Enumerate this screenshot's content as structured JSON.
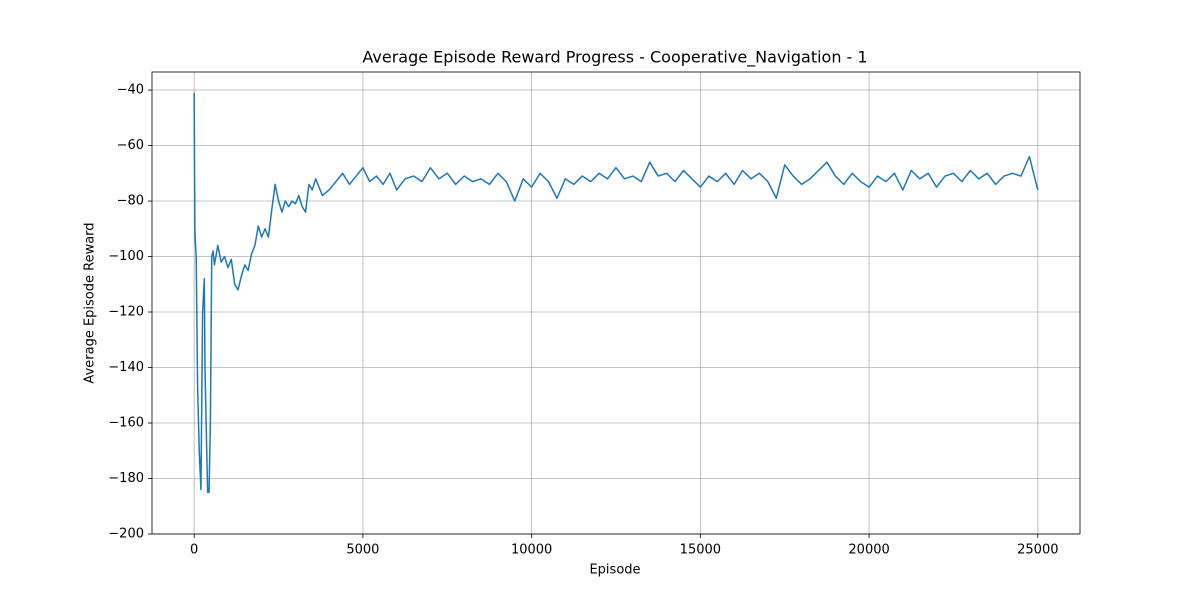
{
  "chart_data": {
    "type": "line",
    "title": "Average Episode Reward Progress - Cooperative_Navigation - 1",
    "x_label": "Episode",
    "y_label": "Average Episode Reward",
    "x": [
      0,
      20,
      40,
      60,
      100,
      150,
      200,
      250,
      300,
      320,
      380,
      400,
      440,
      480,
      520,
      560,
      600,
      700,
      800,
      900,
      1000,
      1100,
      1200,
      1300,
      1400,
      1500,
      1600,
      1700,
      1800,
      1900,
      2000,
      2100,
      2200,
      2300,
      2400,
      2500,
      2600,
      2700,
      2800,
      2900,
      3000,
      3100,
      3200,
      3300,
      3400,
      3500,
      3600,
      3800,
      4000,
      4200,
      4400,
      4600,
      4800,
      5000,
      5200,
      5400,
      5600,
      5800,
      6000,
      6250,
      6500,
      6750,
      7000,
      7250,
      7500,
      7750,
      8000,
      8250,
      8500,
      8750,
      9000,
      9250,
      9500,
      9750,
      10000,
      10250,
      10500,
      10750,
      11000,
      11250,
      11500,
      11750,
      12000,
      12250,
      12500,
      12750,
      13000,
      13250,
      13500,
      13750,
      14000,
      14250,
      14500,
      14750,
      15000,
      15250,
      15500,
      15750,
      16000,
      16250,
      16500,
      16750,
      17000,
      17250,
      17500,
      17750,
      18000,
      18250,
      18500,
      18750,
      19000,
      19250,
      19500,
      19750,
      20000,
      20250,
      20500,
      20750,
      21000,
      21250,
      21500,
      21750,
      22000,
      22250,
      22500,
      22750,
      23000,
      23250,
      23500,
      23750,
      24000,
      24250,
      24500,
      24750,
      25000
    ],
    "series": [
      {
        "name": "Average Episode Reward",
        "color": "#1f77b4",
        "values": [
          -41,
          -90,
          -96,
          -100,
          -146,
          -170,
          -184,
          -120,
          -108,
          -140,
          -175,
          -185,
          -185,
          -160,
          -100,
          -98,
          -103,
          -96,
          -102,
          -100,
          -104,
          -101,
          -110,
          -112,
          -107,
          -103,
          -105,
          -99,
          -96,
          -89,
          -93,
          -90,
          -93,
          -83,
          -74,
          -80,
          -84,
          -80,
          -82,
          -80,
          -81,
          -78,
          -82,
          -84,
          -74,
          -76,
          -72,
          -78,
          -76,
          -73,
          -70,
          -74,
          -71,
          -68,
          -73,
          -71,
          -74,
          -70,
          -76,
          -72,
          -71,
          -73,
          -68,
          -72,
          -70,
          -74,
          -71,
          -73,
          -72,
          -74,
          -70,
          -73,
          -80,
          -72,
          -75,
          -70,
          -73,
          -79,
          -72,
          -74,
          -71,
          -73,
          -70,
          -72,
          -68,
          -72,
          -71,
          -73,
          -66,
          -71,
          -70,
          -73,
          -69,
          -72,
          -75,
          -71,
          -73,
          -70,
          -74,
          -69,
          -72,
          -70,
          -73,
          -79,
          -67,
          -71,
          -74,
          -72,
          -69,
          -66,
          -71,
          -74,
          -70,
          -73,
          -75,
          -71,
          -73,
          -70,
          -76,
          -69,
          -72,
          -70,
          -75,
          -71,
          -70,
          -73,
          -69,
          -72,
          -70,
          -74,
          -71,
          -70,
          -71,
          -64,
          -76
        ]
      }
    ],
    "xlim": [
      -1250,
      26250
    ],
    "ylim": [
      -200,
      -33.5
    ],
    "xticks": [
      0,
      5000,
      10000,
      15000,
      20000,
      25000
    ],
    "yticks": [
      {
        "value": -200,
        "label": "−200"
      },
      {
        "value": -180,
        "label": "−180"
      },
      {
        "value": -160,
        "label": "−160"
      },
      {
        "value": -140,
        "label": "−140"
      },
      {
        "value": -120,
        "label": "−120"
      },
      {
        "value": -100,
        "label": "−100"
      },
      {
        "value": -80,
        "label": "−80"
      },
      {
        "value": -60,
        "label": "−60"
      },
      {
        "value": -40,
        "label": "−40"
      }
    ],
    "grid": true
  }
}
